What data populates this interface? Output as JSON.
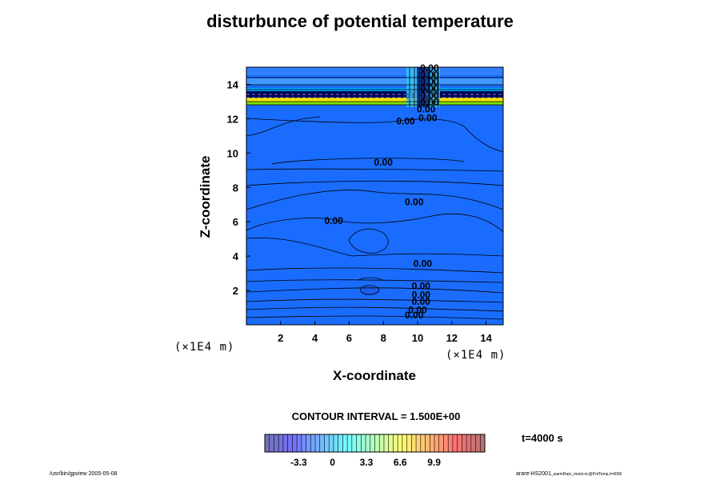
{
  "chart_data": {
    "type": "contour",
    "title": "disturbunce of potential temperature",
    "xlabel": "X-coordinate",
    "ylabel": "Z-coordinate",
    "x_unit": "(×1E4 m)",
    "z_unit": "(×1E4 m)",
    "x_ticks": [
      2,
      4,
      6,
      8,
      10,
      12,
      14
    ],
    "z_ticks": [
      2,
      4,
      6,
      8,
      10,
      12,
      14
    ],
    "xlim": [
      0,
      15
    ],
    "zlim": [
      0,
      15
    ],
    "contour_interval_text": "CONTOUR INTERVAL = 1.500E+00",
    "contour_labels": [
      {
        "text": "0.00",
        "x": 10.7,
        "z": 15.0
      },
      {
        "text": "0.00",
        "x": 10.7,
        "z": 14.6
      },
      {
        "text": "0.00",
        "x": 10.7,
        "z": 14.2
      },
      {
        "text": "0.00",
        "x": 10.7,
        "z": 13.8
      },
      {
        "text": "0.00",
        "x": 10.7,
        "z": 13.4
      },
      {
        "text": "0.00",
        "x": 10.7,
        "z": 13.0
      },
      {
        "text": "0.00",
        "x": 10.5,
        "z": 12.6
      },
      {
        "text": "0.00",
        "x": 9.3,
        "z": 11.9
      },
      {
        "text": "0.00",
        "x": 10.6,
        "z": 12.1
      },
      {
        "text": "0.00",
        "x": 8.0,
        "z": 9.5
      },
      {
        "text": "0.00",
        "x": 9.8,
        "z": 7.2
      },
      {
        "text": "0.00",
        "x": 5.1,
        "z": 6.1
      },
      {
        "text": "0.00",
        "x": 10.3,
        "z": 3.6
      },
      {
        "text": "0.00",
        "x": 10.2,
        "z": 2.3
      },
      {
        "text": "0.00",
        "x": 10.2,
        "z": 1.8
      },
      {
        "text": "0.00",
        "x": 10.2,
        "z": 1.4
      },
      {
        "text": "0.00",
        "x": 10.0,
        "z": 0.9
      },
      {
        "text": "0.00",
        "x": 9.8,
        "z": 0.6
      }
    ],
    "colorbar": {
      "ticks": [
        "-3.3",
        "0",
        "3.3",
        "6.6",
        "9.9"
      ],
      "tick_values": [
        -3.3,
        0,
        3.3,
        6.6,
        9.9
      ],
      "min": -6.6,
      "max": 14.85,
      "step": 0.45
    },
    "time_label": "t=4000 s"
  },
  "footer": {
    "left": "/usr/bin/gpview 2005-05-08",
    "right_main": "arare-HS2001",
    "right_small": "_warmRain_moist.nc@PotTemp,t=4000"
  }
}
